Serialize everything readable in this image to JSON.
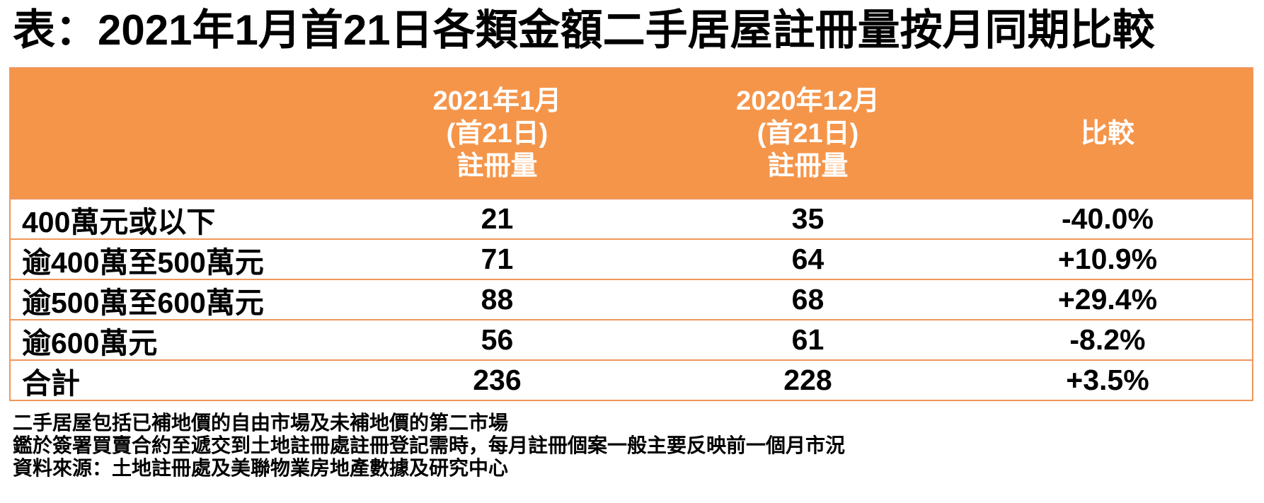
{
  "title": "表：2021年1月首21日各類金額二手居屋註冊量按月同期比較",
  "colors": {
    "accent": "#F5954A",
    "border": "#F0965A",
    "header_text": "#FFFFFF",
    "body_text": "#000000"
  },
  "table": {
    "header": {
      "category": "",
      "col_2021_lines": [
        "2021年1月",
        "(首21日)",
        "註冊量"
      ],
      "col_2020_lines": [
        "2020年12月",
        "(首21日)",
        "註冊量"
      ],
      "col_change": "比較"
    },
    "rows": [
      {
        "label": "400萬元或以下",
        "jan2021": "21",
        "dec2020": "35",
        "change": "-40.0%"
      },
      {
        "label": "逾400萬至500萬元",
        "jan2021": "71",
        "dec2020": "64",
        "change": "+10.9%"
      },
      {
        "label": "逾500萬至600萬元",
        "jan2021": "88",
        "dec2020": "68",
        "change": "+29.4%"
      },
      {
        "label": "逾600萬元",
        "jan2021": "56",
        "dec2020": "61",
        "change": "-8.2%"
      },
      {
        "label": "合計",
        "jan2021": "236",
        "dec2020": "228",
        "change": "+3.5%"
      }
    ]
  },
  "footnotes": [
    "二手居屋包括已補地價的自由市場及未補地價的第二市場",
    "鑑於簽署買賣合約至遞交到土地註冊處註冊登記需時，每月註冊個案一般主要反映前一個月市況",
    "資料來源：土地註冊處及美聯物業房地產數據及研究中心"
  ],
  "chart_data": {
    "type": "table",
    "title": "表：2021年1月首21日各類金額二手居屋註冊量按月同期比較",
    "categories": [
      "400萬元或以下",
      "逾400萬至500萬元",
      "逾500萬至600萬元",
      "逾600萬元",
      "合計"
    ],
    "series": [
      {
        "name": "2021年1月(首21日)註冊量",
        "values": [
          21,
          71,
          88,
          56,
          236
        ]
      },
      {
        "name": "2020年12月(首21日)註冊量",
        "values": [
          35,
          64,
          68,
          61,
          228
        ]
      },
      {
        "name": "比較",
        "values": [
          "-40.0%",
          "+10.9%",
          "+29.4%",
          "-8.2%",
          "+3.5%"
        ]
      }
    ],
    "notes": [
      "二手居屋包括已補地價的自由市場及未補地價的第二市場",
      "鑑於簽署買賣合約至遞交到土地註冊處註冊登記需時，每月註冊個案一般主要反映前一個月市況",
      "資料來源：土地註冊處及美聯物業房地產數據及研究中心"
    ]
  }
}
